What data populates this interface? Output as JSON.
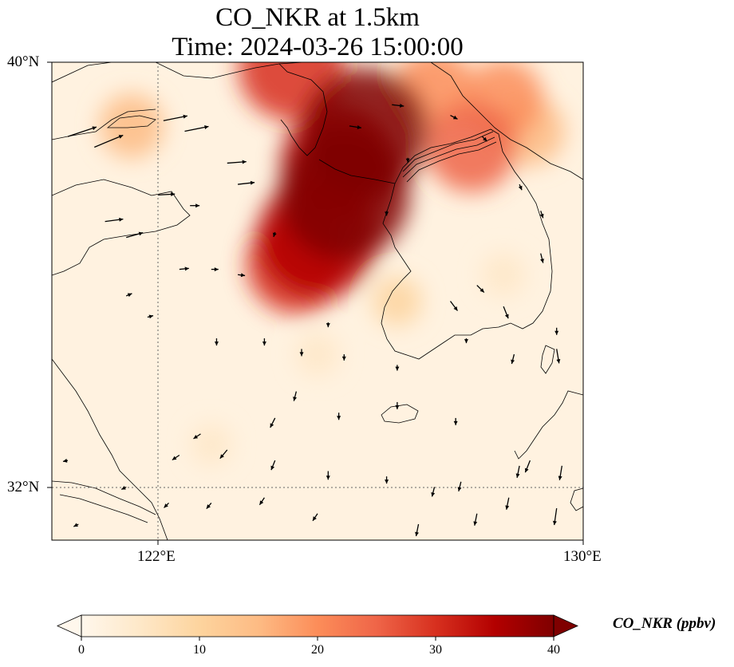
{
  "title": {
    "line1": "CO_NKR at 1.5km",
    "line2": "Time: 2024-03-26 15:00:00"
  },
  "axes": {
    "lon_ticks": [
      "122°E",
      "130°E"
    ],
    "lat_ticks": [
      "40°N",
      "32°N"
    ],
    "lon_range": [
      120,
      130
    ],
    "lat_range": [
      31,
      40
    ],
    "gridlines": "dotted at 122°E and 32°N"
  },
  "colorbar": {
    "label": "CO_NKR (ppbv)",
    "ticks": [
      "0",
      "10",
      "20",
      "30",
      "40"
    ],
    "range": [
      0,
      40
    ],
    "extend": "both",
    "colormap": "OrRd",
    "colors": [
      "#fff7ec",
      "#fee8c8",
      "#fdd49e",
      "#fdbb84",
      "#fc8d59",
      "#ef6548",
      "#d7301f",
      "#b30000",
      "#7f0000"
    ]
  },
  "chart_data": {
    "type": "heatmap",
    "variable": "CO_NKR",
    "units": "ppbv",
    "level": "1.5km",
    "time": "2024-03-26 15:00:00",
    "lon_range": [
      120,
      130
    ],
    "lat_range": [
      31,
      40
    ],
    "plumes": [
      {
        "lon": 125.5,
        "lat": 37.5,
        "value": 40
      },
      {
        "lon": 125.9,
        "lat": 38.7,
        "value": 38
      },
      {
        "lon": 125.0,
        "lat": 36.7,
        "value": 36
      },
      {
        "lon": 124.6,
        "lat": 36.2,
        "value": 28
      },
      {
        "lon": 125.4,
        "lat": 38.1,
        "value": 34
      },
      {
        "lon": 127.9,
        "lat": 38.4,
        "value": 24
      },
      {
        "lon": 127.2,
        "lat": 39.5,
        "value": 20
      },
      {
        "lon": 128.5,
        "lat": 39.3,
        "value": 20
      },
      {
        "lon": 129.0,
        "lat": 38.7,
        "value": 16
      },
      {
        "lon": 124.5,
        "lat": 39.9,
        "value": 30
      },
      {
        "lon": 121.5,
        "lat": 38.8,
        "value": 14
      },
      {
        "lon": 126.5,
        "lat": 35.5,
        "value": 8
      },
      {
        "lon": 128.5,
        "lat": 36.0,
        "value": 6
      },
      {
        "lon": 125.0,
        "lat": 34.5,
        "value": 6
      },
      {
        "lon": 123.0,
        "lat": 32.8,
        "value": 5
      }
    ],
    "wind_vectors": [
      {
        "lon": 120.3,
        "lat": 38.6,
        "u": 6,
        "v": 2
      },
      {
        "lon": 120.8,
        "lat": 38.4,
        "u": 6,
        "v": 2.5
      },
      {
        "lon": 122.1,
        "lat": 38.9,
        "u": 5,
        "v": 1
      },
      {
        "lon": 122.5,
        "lat": 38.7,
        "u": 5,
        "v": 1
      },
      {
        "lon": 123.3,
        "lat": 38.1,
        "u": 4,
        "v": 0.3
      },
      {
        "lon": 123.5,
        "lat": 37.7,
        "u": 3.5,
        "v": 0.4
      },
      {
        "lon": 122.0,
        "lat": 37.5,
        "u": 3.5,
        "v": 0.2
      },
      {
        "lon": 121.0,
        "lat": 37.0,
        "u": 3.8,
        "v": 0.5
      },
      {
        "lon": 121.4,
        "lat": 36.7,
        "u": 3.5,
        "v": 1
      },
      {
        "lon": 122.4,
        "lat": 36.1,
        "u": 2,
        "v": 0.2
      },
      {
        "lon": 123.0,
        "lat": 36.1,
        "u": 1.5,
        "v": 0
      },
      {
        "lon": 123.5,
        "lat": 36.0,
        "u": 1.5,
        "v": -0.2
      },
      {
        "lon": 121.4,
        "lat": 35.6,
        "u": 1.2,
        "v": 0.5
      },
      {
        "lon": 121.8,
        "lat": 35.2,
        "u": 1.2,
        "v": 0.3
      },
      {
        "lon": 123.1,
        "lat": 34.8,
        "u": 0,
        "v": -1.5
      },
      {
        "lon": 124.0,
        "lat": 34.8,
        "u": 0,
        "v": -1.5
      },
      {
        "lon": 124.7,
        "lat": 34.6,
        "u": 0,
        "v": -1.5
      },
      {
        "lon": 125.5,
        "lat": 34.5,
        "u": 0,
        "v": -1.3
      },
      {
        "lon": 126.5,
        "lat": 34.3,
        "u": 0,
        "v": -1.2
      },
      {
        "lon": 127.5,
        "lat": 35.5,
        "u": 1.5,
        "v": -2
      },
      {
        "lon": 128.0,
        "lat": 35.8,
        "u": 1.5,
        "v": -1.5
      },
      {
        "lon": 128.5,
        "lat": 35.4,
        "u": 1,
        "v": -2.5
      },
      {
        "lon": 129.5,
        "lat": 34.6,
        "u": 0.5,
        "v": -3
      },
      {
        "lon": 129.5,
        "lat": 35.0,
        "u": 0,
        "v": -1.5
      },
      {
        "lon": 128.7,
        "lat": 34.5,
        "u": -0.5,
        "v": -2
      },
      {
        "lon": 124.6,
        "lat": 33.8,
        "u": -0.5,
        "v": -2
      },
      {
        "lon": 125.4,
        "lat": 33.4,
        "u": 0,
        "v": -1.5
      },
      {
        "lon": 126.5,
        "lat": 33.6,
        "u": 0,
        "v": -1.5
      },
      {
        "lon": 127.6,
        "lat": 33.3,
        "u": 0,
        "v": -1.5
      },
      {
        "lon": 124.2,
        "lat": 33.3,
        "u": -1,
        "v": -2
      },
      {
        "lon": 123.3,
        "lat": 32.7,
        "u": -1.5,
        "v": -1.8
      },
      {
        "lon": 122.4,
        "lat": 32.6,
        "u": -1.5,
        "v": -1
      },
      {
        "lon": 122.8,
        "lat": 33.0,
        "u": -1.5,
        "v": -1
      },
      {
        "lon": 124.2,
        "lat": 32.5,
        "u": -0.8,
        "v": -2
      },
      {
        "lon": 125.2,
        "lat": 32.3,
        "u": 0,
        "v": -1.8
      },
      {
        "lon": 126.3,
        "lat": 32.2,
        "u": 0,
        "v": -1.5
      },
      {
        "lon": 127.2,
        "lat": 32.0,
        "u": -0.5,
        "v": -2
      },
      {
        "lon": 127.7,
        "lat": 32.1,
        "u": -0.5,
        "v": -2
      },
      {
        "lon": 128.8,
        "lat": 32.4,
        "u": -0.5,
        "v": -2.5
      },
      {
        "lon": 129.0,
        "lat": 32.5,
        "u": -1,
        "v": -2.5
      },
      {
        "lon": 129.6,
        "lat": 32.4,
        "u": -0.5,
        "v": -3
      },
      {
        "lon": 128.6,
        "lat": 31.8,
        "u": -0.5,
        "v": -2.5
      },
      {
        "lon": 129.5,
        "lat": 31.6,
        "u": -0.5,
        "v": -3.5
      },
      {
        "lon": 128.0,
        "lat": 31.5,
        "u": -0.5,
        "v": -2.5
      },
      {
        "lon": 126.9,
        "lat": 31.3,
        "u": -0.5,
        "v": -2.5
      },
      {
        "lon": 125.0,
        "lat": 31.5,
        "u": -1,
        "v": -1.5
      },
      {
        "lon": 124.0,
        "lat": 31.8,
        "u": -1,
        "v": -1.5
      },
      {
        "lon": 123.0,
        "lat": 31.7,
        "u": -1,
        "v": -1.2
      },
      {
        "lon": 122.2,
        "lat": 31.7,
        "u": -1,
        "v": -1
      },
      {
        "lon": 121.4,
        "lat": 32.0,
        "u": -1,
        "v": -0.5
      },
      {
        "lon": 120.5,
        "lat": 31.3,
        "u": -1,
        "v": -0.5
      },
      {
        "lon": 120.3,
        "lat": 32.5,
        "u": -1,
        "v": -0.2
      },
      {
        "lon": 122.6,
        "lat": 37.3,
        "u": 2,
        "v": 0
      },
      {
        "lon": 125.6,
        "lat": 38.8,
        "u": 2.5,
        "v": -0.4
      },
      {
        "lon": 126.4,
        "lat": 39.2,
        "u": 2.5,
        "v": -0.3
      },
      {
        "lon": 127.5,
        "lat": 39.0,
        "u": 1.5,
        "v": -0.8
      },
      {
        "lon": 128.1,
        "lat": 38.6,
        "u": 1,
        "v": -1
      },
      {
        "lon": 128.8,
        "lat": 37.7,
        "u": 0.5,
        "v": -1.2
      },
      {
        "lon": 129.2,
        "lat": 37.2,
        "u": 0.5,
        "v": -1.5
      },
      {
        "lon": 129.2,
        "lat": 36.4,
        "u": 0.5,
        "v": -2
      },
      {
        "lon": 126.3,
        "lat": 37.2,
        "u": 0,
        "v": -1
      },
      {
        "lon": 124.2,
        "lat": 36.8,
        "u": -0.3,
        "v": -1
      },
      {
        "lon": 126.7,
        "lat": 38.2,
        "u": 0,
        "v": -1
      },
      {
        "lon": 125.2,
        "lat": 35.1,
        "u": 0,
        "v": -1
      },
      {
        "lon": 127.8,
        "lat": 34.8,
        "u": 0,
        "v": -1
      }
    ]
  }
}
